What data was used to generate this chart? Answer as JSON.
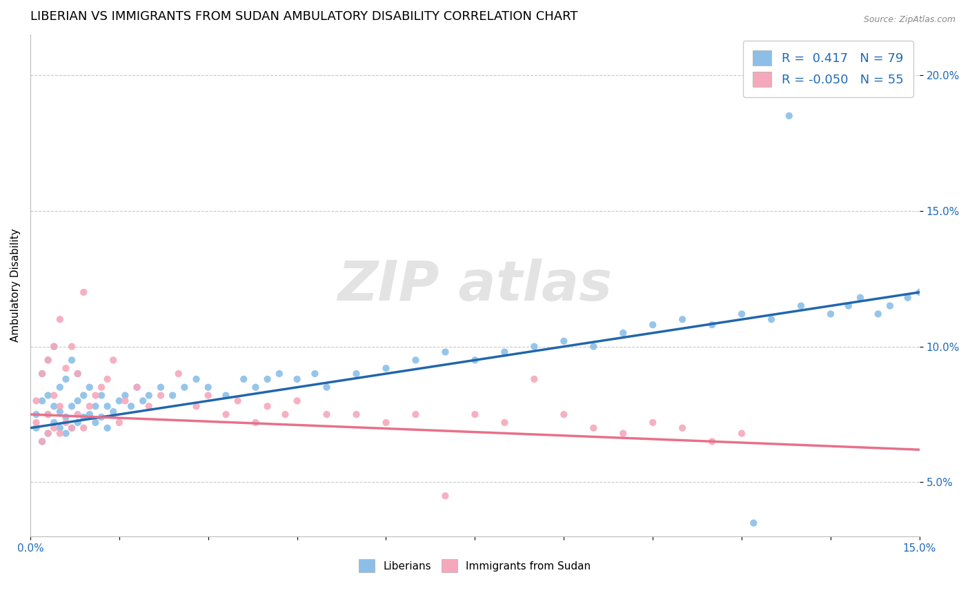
{
  "title": "LIBERIAN VS IMMIGRANTS FROM SUDAN AMBULATORY DISABILITY CORRELATION CHART",
  "source": "Source: ZipAtlas.com",
  "ylabel": "Ambulatory Disability",
  "xlim": [
    0.0,
    0.15
  ],
  "ylim": [
    0.03,
    0.215
  ],
  "r_liberian": 0.417,
  "n_liberian": 79,
  "r_sudan": -0.05,
  "n_sudan": 55,
  "color_liberian": "#8BBFE8",
  "color_sudan": "#F5A8BC",
  "line_color_liberian": "#2166AC",
  "line_color_sudan": "#E8708A",
  "liberian_x": [
    0.001,
    0.001,
    0.002,
    0.002,
    0.002,
    0.003,
    0.003,
    0.003,
    0.003,
    0.004,
    0.004,
    0.004,
    0.005,
    0.005,
    0.005,
    0.006,
    0.006,
    0.006,
    0.007,
    0.007,
    0.007,
    0.008,
    0.008,
    0.008,
    0.009,
    0.009,
    0.01,
    0.01,
    0.011,
    0.011,
    0.012,
    0.012,
    0.013,
    0.013,
    0.014,
    0.015,
    0.016,
    0.017,
    0.018,
    0.019,
    0.02,
    0.022,
    0.024,
    0.026,
    0.028,
    0.03,
    0.033,
    0.036,
    0.038,
    0.04,
    0.042,
    0.045,
    0.048,
    0.05,
    0.055,
    0.06,
    0.065,
    0.07,
    0.075,
    0.08,
    0.085,
    0.09,
    0.095,
    0.1,
    0.105,
    0.11,
    0.115,
    0.12,
    0.125,
    0.13,
    0.135,
    0.138,
    0.14,
    0.143,
    0.145,
    0.148,
    0.15,
    0.122,
    0.128
  ],
  "liberian_y": [
    0.07,
    0.075,
    0.065,
    0.08,
    0.09,
    0.068,
    0.075,
    0.082,
    0.095,
    0.072,
    0.078,
    0.1,
    0.07,
    0.076,
    0.085,
    0.068,
    0.074,
    0.088,
    0.07,
    0.078,
    0.095,
    0.072,
    0.08,
    0.09,
    0.074,
    0.082,
    0.075,
    0.085,
    0.072,
    0.078,
    0.074,
    0.082,
    0.07,
    0.078,
    0.076,
    0.08,
    0.082,
    0.078,
    0.085,
    0.08,
    0.082,
    0.085,
    0.082,
    0.085,
    0.088,
    0.085,
    0.082,
    0.088,
    0.085,
    0.088,
    0.09,
    0.088,
    0.09,
    0.085,
    0.09,
    0.092,
    0.095,
    0.098,
    0.095,
    0.098,
    0.1,
    0.102,
    0.1,
    0.105,
    0.108,
    0.11,
    0.108,
    0.112,
    0.11,
    0.115,
    0.112,
    0.115,
    0.118,
    0.112,
    0.115,
    0.118,
    0.12,
    0.035,
    0.185
  ],
  "sudan_x": [
    0.001,
    0.001,
    0.002,
    0.002,
    0.003,
    0.003,
    0.003,
    0.004,
    0.004,
    0.004,
    0.005,
    0.005,
    0.005,
    0.006,
    0.006,
    0.007,
    0.007,
    0.008,
    0.008,
    0.009,
    0.009,
    0.01,
    0.011,
    0.012,
    0.013,
    0.014,
    0.015,
    0.016,
    0.018,
    0.02,
    0.022,
    0.025,
    0.028,
    0.03,
    0.033,
    0.035,
    0.038,
    0.04,
    0.043,
    0.045,
    0.05,
    0.055,
    0.06,
    0.065,
    0.07,
    0.075,
    0.08,
    0.085,
    0.09,
    0.095,
    0.1,
    0.105,
    0.11,
    0.115,
    0.12
  ],
  "sudan_y": [
    0.072,
    0.08,
    0.065,
    0.09,
    0.068,
    0.075,
    0.095,
    0.07,
    0.082,
    0.1,
    0.068,
    0.078,
    0.11,
    0.072,
    0.092,
    0.07,
    0.1,
    0.075,
    0.09,
    0.07,
    0.12,
    0.078,
    0.082,
    0.085,
    0.088,
    0.095,
    0.072,
    0.08,
    0.085,
    0.078,
    0.082,
    0.09,
    0.078,
    0.082,
    0.075,
    0.08,
    0.072,
    0.078,
    0.075,
    0.08,
    0.075,
    0.075,
    0.072,
    0.075,
    0.045,
    0.075,
    0.072,
    0.088,
    0.075,
    0.07,
    0.068,
    0.072,
    0.07,
    0.065,
    0.068
  ]
}
